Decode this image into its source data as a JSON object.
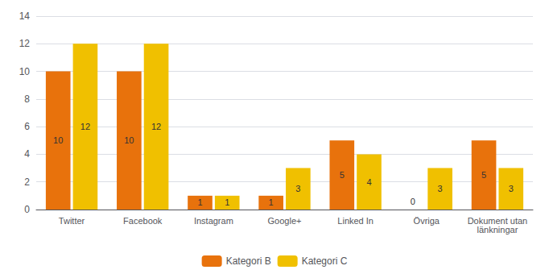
{
  "chart_data": {
    "type": "bar",
    "categories": [
      "Twitter",
      "Facebook",
      "Instagram",
      "Google+",
      "Linked In",
      "Övriga",
      "Dokument utan\nlänkningar"
    ],
    "series": [
      {
        "name": "Kategori B",
        "color": "#E8720C",
        "values": [
          10,
          10,
          1,
          1,
          5,
          0,
          5
        ]
      },
      {
        "name": "Kategori C",
        "color": "#F0C000",
        "values": [
          12,
          12,
          1,
          3,
          4,
          3,
          3
        ]
      }
    ],
    "ylim": [
      0,
      14
    ],
    "yticks": [
      0,
      2,
      4,
      6,
      8,
      10,
      12,
      14
    ],
    "grid": true,
    "legend": "bottom",
    "data_labels": true
  }
}
